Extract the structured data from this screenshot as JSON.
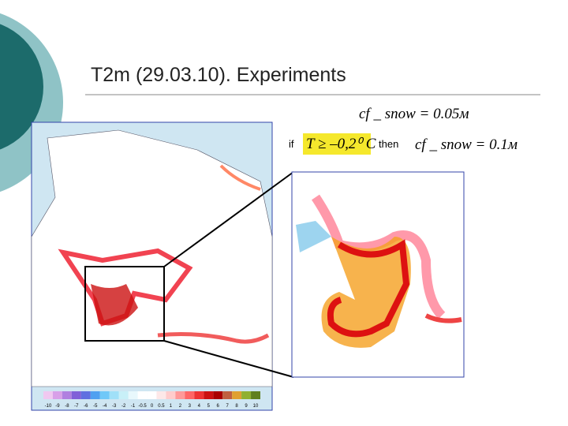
{
  "header": {
    "title": "T2m (29.03.10). Experiments"
  },
  "formulas": {
    "base": "cf _ snow = 0.05м",
    "if": "if",
    "condition": "T ≥ –0,2⁰ C",
    "then": "then",
    "result": "cf _ snow = 0.1м"
  },
  "colorbar": {
    "labels": [
      "-10",
      "-9",
      "-8",
      "-7",
      "-6",
      "-5",
      "-4",
      "-3",
      "-2",
      "-1",
      "-0.5",
      "0",
      "0.5",
      "1",
      "2",
      "3",
      "4",
      "5",
      "6",
      "7",
      "8",
      "9",
      "10"
    ]
  }
}
